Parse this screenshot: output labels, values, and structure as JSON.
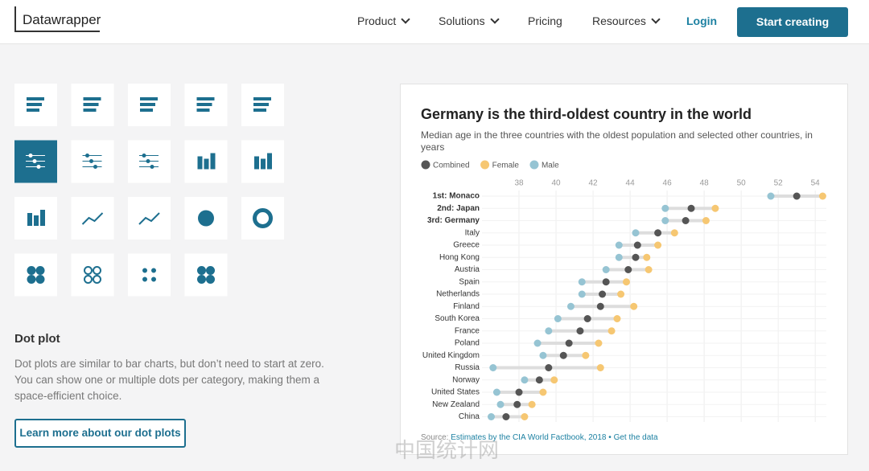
{
  "nav": {
    "logo": "Datawrapper",
    "items": [
      "Product",
      "Solutions",
      "Pricing",
      "Resources"
    ],
    "login": "Login",
    "cta": "Start creating"
  },
  "sidebar": {
    "heading": "Dot plot",
    "description": "Dot plots are similar to bar charts, but don’t need to start at zero. You can show one or multiple dots per category, making them a space-efficient choice.",
    "button": "Learn more about our dot plots"
  },
  "watermark": "中国统计网",
  "chart_data": {
    "type": "dot",
    "title": "Germany is the third-oldest country in the world",
    "subtitle": "Median age in the three countries with the oldest population and selected other countries, in years",
    "source_label": "Source:",
    "source_name": "Estimates by the CIA World Factbook, 2018",
    "source_separator": "•",
    "data_link": "Get the data",
    "categories": [
      "1st: Monaco",
      "2nd: Japan",
      "3rd: Germany",
      "Italy",
      "Greece",
      "Hong Kong",
      "Austria",
      "Spain",
      "Netherlands",
      "Finland",
      "South Korea",
      "France",
      "Poland",
      "United Kingdom",
      "Russia",
      "Norway",
      "United States",
      "New Zealand",
      "China"
    ],
    "series": [
      {
        "name": "Combined",
        "color": "#555555",
        "values": [
          53.0,
          47.3,
          47.0,
          45.5,
          44.4,
          44.3,
          43.9,
          42.7,
          42.5,
          42.4,
          41.7,
          41.3,
          40.7,
          40.4,
          39.6,
          39.1,
          38.0,
          37.9,
          37.3
        ]
      },
      {
        "name": "Female",
        "color": "#f6c772",
        "values": [
          54.4,
          48.6,
          48.1,
          46.4,
          45.5,
          44.9,
          45.0,
          43.8,
          43.5,
          44.2,
          43.3,
          43.0,
          42.3,
          41.6,
          42.4,
          39.9,
          39.3,
          38.7,
          38.3
        ]
      },
      {
        "name": "Male",
        "color": "#96c4d3",
        "values": [
          51.6,
          45.9,
          45.9,
          44.3,
          43.4,
          43.4,
          42.7,
          41.4,
          41.4,
          40.8,
          40.1,
          39.6,
          39.0,
          39.3,
          36.6,
          38.3,
          36.8,
          37.0,
          36.5
        ]
      }
    ],
    "xlim": [
      36,
      54.6
    ],
    "xticks": [
      38,
      40,
      42,
      44,
      46,
      48,
      50,
      52,
      54
    ],
    "grid": true
  }
}
